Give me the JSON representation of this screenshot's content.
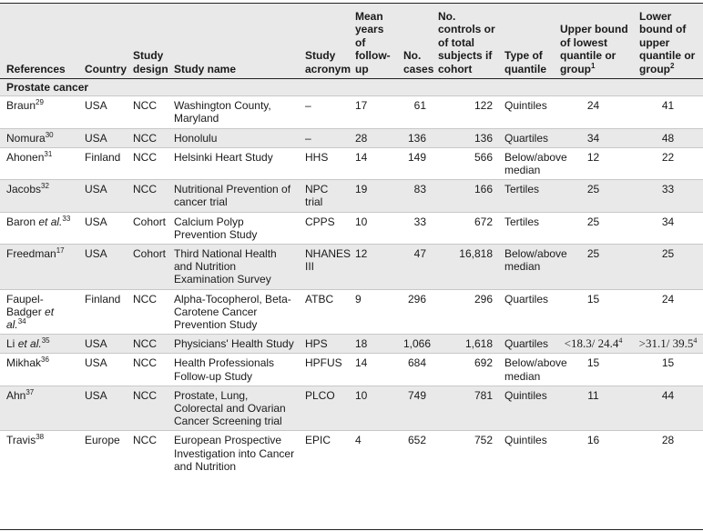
{
  "headers": {
    "references": "References",
    "country": "Country",
    "study_design": "Study design",
    "study_name": "Study name",
    "study_acronym": "Study acronym",
    "mean_years": "Mean years of follow-up",
    "no_cases": "No. cases",
    "no_controls": "No. controls or of total subjects if cohort",
    "type_quantile": "Type of quantile",
    "upper_bound_main": "Upper bound of lowest quantile or group",
    "upper_bound_sup": "1",
    "lower_bound_main": "Lower bound of upper quantile or group",
    "lower_bound_sup": "2"
  },
  "section": "Prostate cancer",
  "rows": [
    {
      "ref": "Braun",
      "ref_italic": "",
      "ref_sup": "29",
      "country": "USA",
      "design": "NCC",
      "name": "Washington County, Maryland",
      "acronym": "–",
      "years": "17",
      "cases": "61",
      "controls": "122",
      "quantile": "Quintiles",
      "upper": "24",
      "upper_sup": "",
      "lower": "41",
      "lower_sup": ""
    },
    {
      "ref": "Nomura",
      "ref_italic": "",
      "ref_sup": "30",
      "country": "USA",
      "design": "NCC",
      "name": "Honolulu",
      "acronym": "–",
      "years": "28",
      "cases": "136",
      "controls": "136",
      "quantile": "Quartiles",
      "upper": "34",
      "upper_sup": "",
      "lower": "48",
      "lower_sup": ""
    },
    {
      "ref": "Ahonen",
      "ref_italic": "",
      "ref_sup": "31",
      "country": "Finland",
      "design": "NCC",
      "name": "Helsinki Heart Study",
      "acronym": "HHS",
      "years": "14",
      "cases": "149",
      "controls": "566",
      "quantile": "Below/above median",
      "upper": "12",
      "upper_sup": "",
      "lower": "22",
      "lower_sup": ""
    },
    {
      "ref": "Jacobs",
      "ref_italic": "",
      "ref_sup": "32",
      "country": "USA",
      "design": "NCC",
      "name": "Nutritional Prevention of cancer trial",
      "acronym": "NPC trial",
      "years": "19",
      "cases": "83",
      "controls": "166",
      "quantile": "Tertiles",
      "upper": "25",
      "upper_sup": "",
      "lower": "33",
      "lower_sup": ""
    },
    {
      "ref": "Baron ",
      "ref_italic": "et al.",
      "ref_sup": "33",
      "country": "USA",
      "design": "Cohort",
      "name": "Calcium Polyp Prevention Study",
      "acronym": "CPPS",
      "years": "10",
      "cases": "33",
      "controls": "672",
      "quantile": "Tertiles",
      "upper": "25",
      "upper_sup": "",
      "lower": "34",
      "lower_sup": ""
    },
    {
      "ref": "Freedman",
      "ref_italic": "",
      "ref_sup": "17",
      "country": "USA",
      "design": "Cohort",
      "name": "Third National Health and Nutrition Examination Survey",
      "acronym": "NHANES III",
      "years": "12",
      "cases": "47",
      "controls": "16,818",
      "quantile": "Below/above median",
      "upper": "25",
      "upper_sup": "",
      "lower": "25",
      "lower_sup": ""
    },
    {
      "ref": "Faupel-Badger ",
      "ref_italic": "et al.",
      "ref_sup": "34",
      "country": "Finland",
      "design": "NCC",
      "name": "Alpha-Tocopherol, Beta-Carotene Cancer Prevention Study",
      "acronym": "ATBC",
      "years": "9",
      "cases": "296",
      "controls": "296",
      "quantile": "Quartiles",
      "upper": "15",
      "upper_sup": "",
      "lower": "24",
      "lower_sup": ""
    },
    {
      "ref": "Li ",
      "ref_italic": "et al.",
      "ref_sup": "35",
      "country": "USA",
      "design": "NCC",
      "name": "Physicians' Health Study",
      "acronym": "HPS",
      "years": "18",
      "cases": "1,066",
      "controls": "1,618",
      "quantile": "Quartiles",
      "upper": "<18.3/ 24.4",
      "upper_sup": "4",
      "lower": ">31.1/ 39.5",
      "lower_sup": "4"
    },
    {
      "ref": "Mikhak",
      "ref_italic": "",
      "ref_sup": "36",
      "country": "USA",
      "design": "NCC",
      "name": "Health Professionals Follow-up Study",
      "acronym": "HPFUS",
      "years": "14",
      "cases": "684",
      "controls": "692",
      "quantile": "Below/above median",
      "upper": "15",
      "upper_sup": "",
      "lower": "15",
      "lower_sup": ""
    },
    {
      "ref": "Ahn",
      "ref_italic": "",
      "ref_sup": "37",
      "country": "USA",
      "design": "NCC",
      "name": "Prostate, Lung, Colorectal and Ovarian Cancer Screening trial",
      "acronym": "PLCO",
      "years": "10",
      "cases": "749",
      "controls": "781",
      "quantile": "Quintiles",
      "upper": "11",
      "upper_sup": "",
      "lower": "44",
      "lower_sup": ""
    },
    {
      "ref": "Travis",
      "ref_italic": "",
      "ref_sup": "38",
      "country": "Europe",
      "design": "NCC",
      "name": "European Prospective Investigation into Cancer and Nutrition",
      "acronym": "EPIC",
      "years": "4",
      "cases": "652",
      "controls": "752",
      "quantile": "Quintiles",
      "upper": "16",
      "upper_sup": "",
      "lower": "28",
      "lower_sup": ""
    }
  ]
}
